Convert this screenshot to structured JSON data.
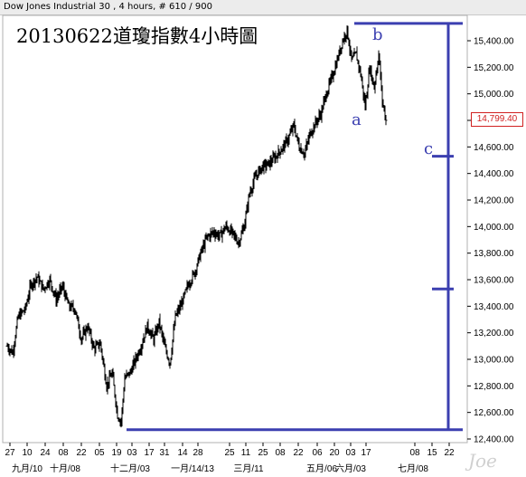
{
  "window": {
    "title": "Dow Jones Industrial 30 , 4 hours, # 610 / 900"
  },
  "chart_data": {
    "type": "line",
    "style": "ohlc-bars",
    "title": "20130622道瓊指數4小時圖",
    "xlabel": "",
    "ylabel": "",
    "ylim": [
      12400,
      15600
    ],
    "y_ticks": [
      12400,
      12600,
      12800,
      13000,
      13200,
      13400,
      13600,
      13800,
      14000,
      14200,
      14400,
      14600,
      14800,
      15000,
      15200,
      15400
    ],
    "y_tick_labels": [
      "12,400.00",
      "12,600.00",
      "12,800.00",
      "13,000.00",
      "13,200.00",
      "13,400.00",
      "13,600.00",
      "13,800.00",
      "14,000.00",
      "14,200.00",
      "14,400.00",
      "14,600.00",
      "14,800.00",
      "15,000.00",
      "15,200.00",
      "15,400.00"
    ],
    "x_ticks_top": [
      "27",
      "10",
      "24",
      "08",
      "22",
      "05",
      "19",
      "03",
      "17",
      "31",
      "14",
      "28",
      "25",
      "11",
      "25",
      "08",
      "22",
      "06",
      "20",
      "03",
      "17",
      "08",
      "15",
      "22"
    ],
    "x_ticks_bottom": [
      "九月/10",
      "十月/08",
      "十二月/03",
      "一月/14/13",
      "三月/11",
      "五月/06",
      "六月/03",
      "七月/08"
    ],
    "last_price": "14,799.40",
    "price_path": [
      {
        "i": 0,
        "v": 13100
      },
      {
        "i": 6,
        "v": 13050
      },
      {
        "i": 12,
        "v": 13320
      },
      {
        "i": 20,
        "v": 13380
      },
      {
        "i": 26,
        "v": 13560
      },
      {
        "i": 33,
        "v": 13620
      },
      {
        "i": 40,
        "v": 13530
      },
      {
        "i": 47,
        "v": 13600
      },
      {
        "i": 54,
        "v": 13450
      },
      {
        "i": 61,
        "v": 13550
      },
      {
        "i": 68,
        "v": 13400
      },
      {
        "i": 75,
        "v": 13380
      },
      {
        "i": 82,
        "v": 13150
      },
      {
        "i": 89,
        "v": 13250
      },
      {
        "i": 96,
        "v": 13080
      },
      {
        "i": 103,
        "v": 13120
      },
      {
        "i": 110,
        "v": 12800
      },
      {
        "i": 116,
        "v": 12900
      },
      {
        "i": 122,
        "v": 12580
      },
      {
        "i": 126,
        "v": 12530
      },
      {
        "i": 130,
        "v": 12860
      },
      {
        "i": 136,
        "v": 12900
      },
      {
        "i": 142,
        "v": 13000
      },
      {
        "i": 148,
        "v": 13100
      },
      {
        "i": 155,
        "v": 13250
      },
      {
        "i": 162,
        "v": 13150
      },
      {
        "i": 168,
        "v": 13280
      },
      {
        "i": 174,
        "v": 13100
      },
      {
        "i": 180,
        "v": 12970
      },
      {
        "i": 186,
        "v": 13320
      },
      {
        "i": 193,
        "v": 13420
      },
      {
        "i": 200,
        "v": 13560
      },
      {
        "i": 207,
        "v": 13650
      },
      {
        "i": 214,
        "v": 13800
      },
      {
        "i": 221,
        "v": 13920
      },
      {
        "i": 228,
        "v": 13960
      },
      {
        "i": 235,
        "v": 13930
      },
      {
        "i": 242,
        "v": 14000
      },
      {
        "i": 249,
        "v": 13950
      },
      {
        "i": 256,
        "v": 13880
      },
      {
        "i": 262,
        "v": 14000
      },
      {
        "i": 268,
        "v": 14250
      },
      {
        "i": 275,
        "v": 14380
      },
      {
        "i": 282,
        "v": 14450
      },
      {
        "i": 289,
        "v": 14470
      },
      {
        "i": 296,
        "v": 14520
      },
      {
        "i": 303,
        "v": 14580
      },
      {
        "i": 310,
        "v": 14650
      },
      {
        "i": 317,
        "v": 14760
      },
      {
        "i": 323,
        "v": 14600
      },
      {
        "i": 329,
        "v": 14550
      },
      {
        "i": 335,
        "v": 14700
      },
      {
        "i": 341,
        "v": 14780
      },
      {
        "i": 347,
        "v": 14850
      },
      {
        "i": 353,
        "v": 15000
      },
      {
        "i": 359,
        "v": 15120
      },
      {
        "i": 365,
        "v": 15250
      },
      {
        "i": 371,
        "v": 15400
      },
      {
        "i": 376,
        "v": 15480
      },
      {
        "i": 381,
        "v": 15250
      },
      {
        "i": 386,
        "v": 15300
      },
      {
        "i": 391,
        "v": 15150
      },
      {
        "i": 396,
        "v": 14900
      },
      {
        "i": 401,
        "v": 15200
      },
      {
        "i": 406,
        "v": 15050
      },
      {
        "i": 411,
        "v": 15300
      },
      {
        "i": 415,
        "v": 14950
      },
      {
        "i": 419,
        "v": 14799
      }
    ],
    "annotations": {
      "wave_labels": [
        {
          "text": "a",
          "i": 387,
          "v": 14780
        },
        {
          "text": "b",
          "i": 410,
          "v": 15420
        },
        {
          "text": "c",
          "i": 467,
          "v": 14560
        }
      ],
      "level_top": 15530,
      "level_bottom": 12470,
      "marker_levels": [
        14530,
        13530
      ]
    },
    "colors": {
      "bars": "#000000",
      "annotation": "#3b3fb0",
      "last_price": "#d02020"
    }
  }
}
